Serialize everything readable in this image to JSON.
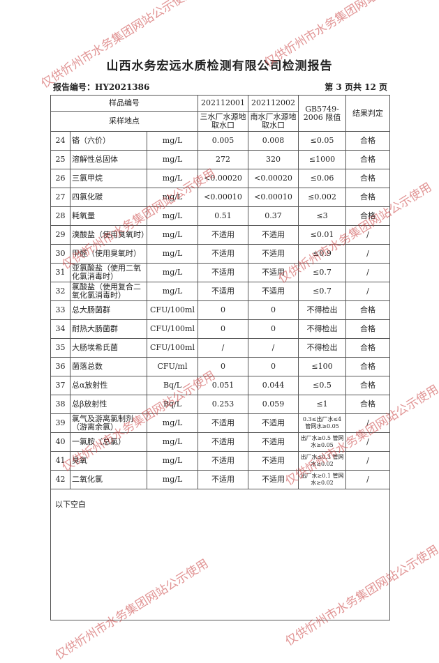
{
  "header": {
    "title": "山西水务宏远水质检测有限公司检测报告",
    "report_no": "报告编号：HY2021386",
    "page": "第 3 页共 12 页"
  },
  "table": {
    "h_sample_no": "样品编号",
    "h_location": "采样地点",
    "samples": [
      {
        "id": "202112001",
        "loc": "三水厂水源地取水口"
      },
      {
        "id": "202112002",
        "loc": "南水厂水源地取水口"
      }
    ],
    "h_limit": "GB5749-2006 限值",
    "h_result": "结果判定",
    "rows": [
      {
        "n": "24",
        "name": "铬（六价）",
        "unit": "mg/L",
        "v1": "0.005",
        "v2": "0.008",
        "limit": "≤0.05",
        "res": "合格"
      },
      {
        "n": "25",
        "name": "溶解性总固体",
        "unit": "mg/L",
        "v1": "272",
        "v2": "320",
        "limit": "≤1000",
        "res": "合格"
      },
      {
        "n": "26",
        "name": "三氯甲烷",
        "unit": "mg/L",
        "v1": "<0.00020",
        "v2": "<0.00020",
        "limit": "≤0.06",
        "res": "合格"
      },
      {
        "n": "27",
        "name": "四氯化碳",
        "unit": "mg/L",
        "v1": "<0.00010",
        "v2": "<0.00010",
        "limit": "≤0.002",
        "res": "合格"
      },
      {
        "n": "28",
        "name": "耗氧量",
        "unit": "mg/L",
        "v1": "0.51",
        "v2": "0.37",
        "limit": "≤3",
        "res": "合格"
      },
      {
        "n": "29",
        "name": "溴酸盐（使用臭氧时）",
        "unit": "mg/L",
        "v1": "不适用",
        "v2": "不适用",
        "limit": "≤0.01",
        "res": "/"
      },
      {
        "n": "30",
        "name": "甲醛（使用臭氧时）",
        "unit": "mg/L",
        "v1": "不适用",
        "v2": "不适用",
        "limit": "≤0.9",
        "res": "/"
      },
      {
        "n": "31",
        "name": "亚氯酸盐（使用二氧化氯消毒时）",
        "unit": "mg/L",
        "v1": "不适用",
        "v2": "不适用",
        "limit": "≤0.7",
        "res": "/"
      },
      {
        "n": "32",
        "name": "氯酸盐（使用复合二氧化氯消毒时）",
        "unit": "mg/L",
        "v1": "不适用",
        "v2": "不适用",
        "limit": "≤0.7",
        "res": "/"
      },
      {
        "n": "33",
        "name": "总大肠菌群",
        "unit": "CFU/100ml",
        "v1": "0",
        "v2": "0",
        "limit": "不得检出",
        "res": "合格"
      },
      {
        "n": "34",
        "name": "耐热大肠菌群",
        "unit": "CFU/100ml",
        "v1": "0",
        "v2": "0",
        "limit": "不得检出",
        "res": "合格"
      },
      {
        "n": "35",
        "name": "大肠埃希氏菌",
        "unit": "CFU/100ml",
        "v1": "/",
        "v2": "/",
        "limit": "不得检出",
        "res": "合格"
      },
      {
        "n": "36",
        "name": "菌落总数",
        "unit": "CFU/ml",
        "v1": "0",
        "v2": "0",
        "limit": "≤100",
        "res": "合格"
      },
      {
        "n": "37",
        "name": "总α放射性",
        "unit": "Bq/L",
        "v1": "0.051",
        "v2": "0.044",
        "limit": "≤0.5",
        "res": "合格"
      },
      {
        "n": "38",
        "name": "总β放射性",
        "unit": "Bq/L",
        "v1": "0.253",
        "v2": "0.059",
        "limit": "≤1",
        "res": "合格"
      },
      {
        "n": "39",
        "name": "氯气及游离氯制剂（游离余氯）",
        "unit": "mg/L",
        "v1": "不适用",
        "v2": "不适用",
        "limit": "0.3≤出厂水≤4 管网水≥0.05",
        "res": "/",
        "small": true
      },
      {
        "n": "40",
        "name": "一氯胺（总氯）",
        "unit": "mg/L",
        "v1": "不适用",
        "v2": "不适用",
        "limit": "出厂水≥0.5 管网水≥0.05",
        "res": "/",
        "small": true
      },
      {
        "n": "41",
        "name": "臭氧",
        "unit": "mg/L",
        "v1": "不适用",
        "v2": "不适用",
        "limit": "出厂水≤0.3 管网水≥0.02",
        "res": "/",
        "small": true
      },
      {
        "n": "42",
        "name": "二氧化氯",
        "unit": "mg/L",
        "v1": "不适用",
        "v2": "不适用",
        "limit": "出厂水≥0.1 管网水≥0.02",
        "res": "/",
        "small": true
      }
    ],
    "footer_note": "以下空白"
  },
  "watermark": "仅供忻州市水务集团网站公示使用"
}
